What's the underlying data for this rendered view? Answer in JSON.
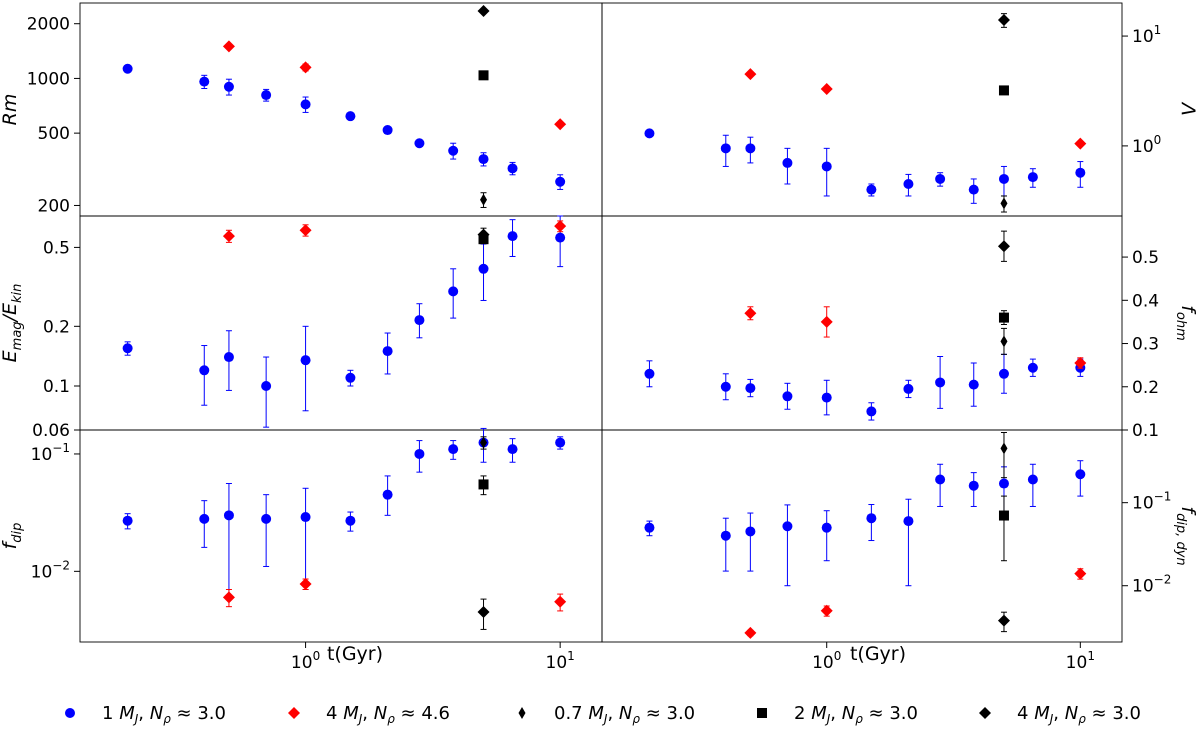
{
  "chart_data": {
    "type": "scatter",
    "x_label": "t(Gyr)",
    "x_range": [
      0.13,
      14.6
    ],
    "series_styles": [
      {
        "key": "s1",
        "name": "1 M_J, N_ρ≈3.0",
        "color": "#0000ff",
        "marker": "circle"
      },
      {
        "key": "s2",
        "name": "4 M_J, N_ρ≈4.6",
        "color": "#ff0000",
        "marker": "diamond"
      },
      {
        "key": "s3",
        "name": "0.7 M_J, N_ρ≈3.0",
        "color": "#000000",
        "marker": "thin_diamond"
      },
      {
        "key": "s4",
        "name": "2 M_J, N_ρ≈3.0",
        "color": "#000000",
        "marker": "square"
      },
      {
        "key": "s5",
        "name": "4 M_J, N_ρ≈3.0",
        "color": "#000000",
        "marker": "diamond"
      }
    ],
    "legend": {
      "position": "bottom",
      "entries": [
        {
          "key": "s1",
          "mass": "1",
          "unit": "M",
          "sub": "J",
          "sep": ", ",
          "n": "N",
          "nsub": "ρ",
          "val": " ≈ 3.0"
        },
        {
          "key": "s2",
          "mass": "4",
          "unit": "M",
          "sub": "J",
          "sep": ", ",
          "n": "N",
          "nsub": "ρ",
          "val": " ≈ 4.6"
        },
        {
          "key": "s3",
          "mass": "0.7",
          "unit": "M",
          "sub": "J",
          "sep": ", ",
          "n": "N",
          "nsub": "ρ",
          "val": " ≈ 3.0"
        },
        {
          "key": "s4",
          "mass": "2",
          "unit": "M",
          "sub": "J",
          "sep": ", ",
          "n": "N",
          "nsub": "ρ",
          "val": " ≈ 3.0"
        },
        {
          "key": "s5",
          "mass": "4",
          "unit": "M",
          "sub": "J",
          "sep": ", ",
          "n": "N",
          "nsub": "ρ",
          "val": " ≈ 3.0"
        }
      ]
    },
    "panels": [
      {
        "id": "rm",
        "col": 0,
        "row": 0,
        "yaxis_side": "left",
        "ylabel": {
          "main": "Rm",
          "sub": ""
        },
        "y_range": [
          175,
          2600
        ],
        "y_ticks": [
          {
            "v": 200,
            "label": "200"
          },
          {
            "v": 500,
            "label": "500"
          },
          {
            "v": 1000,
            "label": "1000"
          },
          {
            "v": 2000,
            "label": "2000"
          }
        ],
        "series": {
          "s1": {
            "x": [
              0.2,
              0.4,
              0.5,
              0.7,
              1.0,
              1.5,
              2.1,
              2.8,
              3.8,
              5.0,
              6.5,
              10.0
            ],
            "y": [
              1130,
              960,
              900,
              810,
              720,
              620,
              520,
              440,
              400,
              360,
              320,
              270
            ],
            "err_lo": [
              0,
              80,
              90,
              60,
              70,
              0,
              0,
              0,
              40,
              30,
              25,
              25
            ],
            "err_hi": [
              0,
              80,
              90,
              60,
              70,
              0,
              0,
              0,
              40,
              30,
              25,
              25
            ]
          },
          "s2": {
            "x": [
              0.5,
              1.0,
              10.0
            ],
            "y": [
              1500,
              1150,
              560
            ],
            "err_lo": [
              0,
              50,
              0
            ],
            "err_hi": [
              0,
              50,
              0
            ]
          },
          "s3": {
            "x": [
              5.0
            ],
            "y": [
              215
            ],
            "err_lo": [
              20
            ],
            "err_hi": [
              20
            ]
          },
          "s4": {
            "x": [
              5.0
            ],
            "y": [
              1040
            ],
            "err_lo": [
              0
            ],
            "err_hi": [
              0
            ]
          },
          "s5": {
            "x": [
              5.0
            ],
            "y": [
              2350
            ],
            "err_lo": [
              0
            ],
            "err_hi": [
              0
            ]
          }
        }
      },
      {
        "id": "lambda",
        "col": 1,
        "row": 0,
        "yaxis_side": "right",
        "ylabel": {
          "main": "Λ",
          "sub": ""
        },
        "y_range": [
          0.23,
          20
        ],
        "y_ticks": [
          {
            "v": 1,
            "label": "10",
            "sup": "0"
          },
          {
            "v": 10,
            "label": "10",
            "sup": "1"
          }
        ],
        "series": {
          "s1": {
            "x": [
              0.2,
              0.4,
              0.5,
              0.7,
              1.0,
              1.5,
              2.1,
              2.8,
              3.8,
              5.0,
              6.5,
              10.0
            ],
            "y": [
              1.3,
              0.95,
              0.95,
              0.7,
              0.65,
              0.4,
              0.45,
              0.5,
              0.4,
              0.5,
              0.52,
              0.57
            ],
            "err_lo": [
              0,
              0.3,
              0.25,
              0.25,
              0.3,
              0.05,
              0.1,
              0.07,
              0.1,
              0.15,
              0.1,
              0.15
            ],
            "err_hi": [
              0,
              0.3,
              0.25,
              0.25,
              0.3,
              0.05,
              0.1,
              0.07,
              0.1,
              0.15,
              0.1,
              0.15
            ]
          },
          "s2": {
            "x": [
              0.5,
              1.0,
              10.0
            ],
            "y": [
              4.5,
              3.3,
              1.05
            ],
            "err_lo": [
              0,
              0,
              0
            ],
            "err_hi": [
              0,
              0,
              0
            ]
          },
          "s3": {
            "x": [
              5.0
            ],
            "y": [
              0.3
            ],
            "err_lo": [
              0.05
            ],
            "err_hi": [
              0.05
            ]
          },
          "s4": {
            "x": [
              5.0
            ],
            "y": [
              3.2
            ],
            "err_lo": [
              0
            ],
            "err_hi": [
              0
            ]
          },
          "s5": {
            "x": [
              5.0
            ],
            "y": [
              14
            ],
            "err_lo": [
              2
            ],
            "err_hi": [
              2
            ]
          }
        }
      },
      {
        "id": "emag",
        "col": 0,
        "row": 1,
        "yaxis_side": "left",
        "ylabel": {
          "main": "E",
          "sub": "mag",
          "rest": "/E",
          "sub2": "kin"
        },
        "y_range": [
          0.06,
          0.72
        ],
        "y_ticks": [
          {
            "v": 0.06,
            "label": "0.06"
          },
          {
            "v": 0.1,
            "label": "0.1"
          },
          {
            "v": 0.2,
            "label": "0.2"
          },
          {
            "v": 0.5,
            "label": "0.5"
          }
        ],
        "series": {
          "s1": {
            "x": [
              0.2,
              0.4,
              0.5,
              0.7,
              1.0,
              1.5,
              2.1,
              2.8,
              3.8,
              5.0,
              6.5,
              10.0
            ],
            "y": [
              0.155,
              0.12,
              0.14,
              0.1,
              0.135,
              0.11,
              0.15,
              0.215,
              0.3,
              0.39,
              0.57,
              0.56
            ],
            "err_lo": [
              0.012,
              0.04,
              0.045,
              0.038,
              0.06,
              0.01,
              0.035,
              0.04,
              0.08,
              0.12,
              0.12,
              0.16
            ],
            "err_hi": [
              0.012,
              0.04,
              0.05,
              0.04,
              0.065,
              0.01,
              0.035,
              0.045,
              0.09,
              0.13,
              0.12,
              0.16
            ]
          },
          "s2": {
            "x": [
              0.5,
              1.0,
              10.0
            ],
            "y": [
              0.57,
              0.61,
              0.64
            ],
            "err_lo": [
              0.04,
              0.04,
              0.04
            ],
            "err_hi": [
              0.04,
              0.04,
              0.04
            ]
          },
          "s3": {
            "x": [
              5.0
            ],
            "y": [
              0.575
            ],
            "err_lo": [
              0.05
            ],
            "err_hi": [
              0.05
            ]
          },
          "s4": {
            "x": [
              5.0
            ],
            "y": [
              0.55
            ],
            "err_lo": [
              0
            ],
            "err_hi": [
              0
            ]
          },
          "s5": {
            "x": [
              5.0
            ],
            "y": [
              0.58
            ],
            "err_lo": [
              0
            ],
            "err_hi": [
              0
            ]
          }
        }
      },
      {
        "id": "fohm",
        "col": 1,
        "row": 1,
        "yaxis_side": "right",
        "ylabel": {
          "main": "f",
          "sub": "ohm"
        },
        "y_range": [
          0.1,
          0.595
        ],
        "y_scale": "linear",
        "y_ticks": [
          {
            "v": 0.1,
            "label": "0.1"
          },
          {
            "v": 0.2,
            "label": "0.2"
          },
          {
            "v": 0.3,
            "label": "0.3"
          },
          {
            "v": 0.4,
            "label": "0.4"
          },
          {
            "v": 0.5,
            "label": "0.5"
          }
        ],
        "series": {
          "s1": {
            "x": [
              0.2,
              0.4,
              0.5,
              0.7,
              1.0,
              1.5,
              2.1,
              2.8,
              3.8,
              5.0,
              6.5,
              10.0
            ],
            "y": [
              0.23,
              0.2,
              0.197,
              0.178,
              0.175,
              0.143,
              0.195,
              0.21,
              0.205,
              0.23,
              0.244,
              0.244
            ],
            "err_lo": [
              0.03,
              0.03,
              0.02,
              0.03,
              0.04,
              0.02,
              0.02,
              0.06,
              0.05,
              0.045,
              0.02,
              0.02
            ],
            "err_hi": [
              0.03,
              0.03,
              0.02,
              0.03,
              0.04,
              0.02,
              0.02,
              0.06,
              0.05,
              0.045,
              0.02,
              0.02
            ]
          },
          "s2": {
            "x": [
              0.5,
              1.0,
              10.0
            ],
            "y": [
              0.37,
              0.35,
              0.255
            ],
            "err_lo": [
              0.015,
              0.035,
              0.012
            ],
            "err_hi": [
              0.015,
              0.035,
              0.012
            ]
          },
          "s3": {
            "x": [
              5.0
            ],
            "y": [
              0.305
            ],
            "err_lo": [
              0.03
            ],
            "err_hi": [
              0.03
            ]
          },
          "s4": {
            "x": [
              5.0
            ],
            "y": [
              0.36
            ],
            "err_lo": [
              0.016
            ],
            "err_hi": [
              0.016
            ]
          },
          "s5": {
            "x": [
              5.0
            ],
            "y": [
              0.525
            ],
            "err_lo": [
              0.035
            ],
            "err_hi": [
              0.035
            ]
          }
        }
      },
      {
        "id": "fdip",
        "col": 0,
        "row": 2,
        "yaxis_side": "left",
        "ylabel": {
          "main": "f",
          "sub": "dip"
        },
        "y_range": [
          0.0025,
          0.16
        ],
        "y_ticks": [
          {
            "v": 0.01,
            "label": "10",
            "sup": "−2"
          },
          {
            "v": 0.1,
            "label": "10",
            "sup": "−1"
          }
        ],
        "series": {
          "s1": {
            "x": [
              0.2,
              0.4,
              0.5,
              0.7,
              1.0,
              1.5,
              2.1,
              2.8,
              3.8,
              5.0,
              6.5,
              10.0
            ],
            "y": [
              0.027,
              0.028,
              0.03,
              0.028,
              0.029,
              0.027,
              0.045,
              0.1,
              0.11,
              0.125,
              0.11,
              0.125
            ],
            "err_lo": [
              0.004,
              0.012,
              0.024,
              0.017,
              0.022,
              0.005,
              0.015,
              0.03,
              0.02,
              0.04,
              0.025,
              0.015
            ],
            "err_hi": [
              0.004,
              0.012,
              0.026,
              0.017,
              0.022,
              0.005,
              0.02,
              0.03,
              0.02,
              0.04,
              0.025,
              0.015
            ]
          },
          "s2": {
            "x": [
              0.5,
              1.0,
              10.0
            ],
            "y": [
              0.006,
              0.0078,
              0.0055
            ],
            "err_lo": [
              0.001,
              0.0008,
              0.0009
            ],
            "err_hi": [
              0.001,
              0.0008,
              0.0009
            ]
          },
          "s3": {
            "x": [
              5.0
            ],
            "y": [
              0.125
            ],
            "err_lo": [
              0.015
            ],
            "err_hi": [
              0.015
            ]
          },
          "s4": {
            "x": [
              5.0
            ],
            "y": [
              0.055
            ],
            "err_lo": [
              0.01
            ],
            "err_hi": [
              0.01
            ]
          },
          "s5": {
            "x": [
              5.0
            ],
            "y": [
              0.0045
            ],
            "err_lo": [
              0.0013
            ],
            "err_hi": [
              0.0013
            ]
          }
        }
      },
      {
        "id": "fdipdyn",
        "col": 1,
        "row": 2,
        "yaxis_side": "right",
        "ylabel": {
          "main": "f",
          "sub": "dip, dyn"
        },
        "y_range": [
          0.0021,
          0.75
        ],
        "y_ticks": [
          {
            "v": 0.01,
            "label": "10",
            "sup": "−2"
          },
          {
            "v": 0.1,
            "label": "10",
            "sup": "−1"
          }
        ],
        "series": {
          "s1": {
            "x": [
              0.2,
              0.4,
              0.5,
              0.7,
              1.0,
              1.5,
              2.1,
              2.8,
              3.8,
              5.0,
              6.5,
              10.0
            ],
            "y": [
              0.05,
              0.04,
              0.045,
              0.052,
              0.05,
              0.065,
              0.06,
              0.19,
              0.16,
              0.17,
              0.19,
              0.22
            ],
            "err_lo": [
              0.01,
              0.025,
              0.03,
              0.042,
              0.03,
              0.03,
              0.05,
              0.1,
              0.07,
              0.1,
              0.1,
              0.1
            ],
            "err_hi": [
              0.01,
              0.025,
              0.03,
              0.042,
              0.03,
              0.03,
              0.05,
              0.1,
              0.07,
              0.1,
              0.1,
              0.1
            ]
          },
          "s2": {
            "x": [
              0.5,
              1.0,
              10.0
            ],
            "y": [
              0.0027,
              0.005,
              0.014
            ],
            "err_lo": [
              0.0002,
              0.0007,
              0.002
            ],
            "err_hi": [
              0.0002,
              0.0007,
              0.002
            ]
          },
          "s3": {
            "x": [
              5.0
            ],
            "y": [
              0.45
            ],
            "err_lo": [
              0.25
            ],
            "err_hi": [
              0.25
            ]
          },
          "s4": {
            "x": [
              5.0
            ],
            "y": [
              0.07
            ],
            "err_lo": [
              0.05
            ],
            "err_hi": [
              0.05
            ]
          },
          "s5": {
            "x": [
              5.0
            ],
            "y": [
              0.0038
            ],
            "err_lo": [
              0.001
            ],
            "err_hi": [
              0.001
            ]
          }
        }
      }
    ],
    "x_ticks": [
      {
        "v": 1,
        "label": "10",
        "sup": "0"
      },
      {
        "v": 10,
        "label": "10",
        "sup": "1"
      }
    ]
  }
}
